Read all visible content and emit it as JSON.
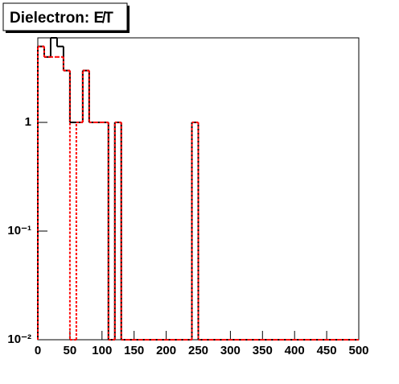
{
  "chart_data": {
    "type": "histogram",
    "title": "Dielectron: E̸T",
    "bins": [
      0,
      10,
      20,
      30,
      40,
      50,
      60,
      70,
      80,
      90,
      100,
      110,
      120,
      130,
      140,
      150,
      160,
      170,
      180,
      190,
      200,
      210,
      220,
      230,
      240,
      250,
      260,
      270,
      280,
      290,
      300,
      310,
      320,
      330,
      340,
      350,
      360,
      370,
      380,
      390,
      400,
      410,
      420,
      430,
      440,
      450,
      460,
      470,
      480,
      490,
      500
    ],
    "series": [
      {
        "color": "#000000",
        "style": "solid",
        "values": [
          5,
          4,
          6,
          5,
          3,
          1,
          1,
          3,
          1,
          1,
          1,
          0,
          1,
          0,
          0,
          0,
          0,
          0,
          0,
          0,
          0,
          0,
          0,
          0,
          1,
          0,
          0,
          0,
          0,
          0,
          0,
          0,
          0,
          0,
          0,
          0,
          0,
          0,
          0,
          0,
          0,
          0,
          0,
          0,
          0,
          0,
          0,
          0,
          0,
          0
        ]
      },
      {
        "color": "#ff0000",
        "style": "dashed",
        "values": [
          5,
          4,
          4,
          4,
          3,
          0,
          1,
          3,
          1,
          1,
          1,
          0,
          1,
          0,
          0,
          0,
          0,
          0,
          0,
          0,
          0,
          0,
          0,
          0,
          1,
          0,
          0,
          0,
          0,
          0,
          0,
          0,
          0,
          0,
          0,
          0,
          0,
          0,
          0,
          0,
          0,
          0,
          0,
          0,
          0,
          0,
          0,
          0,
          0,
          0
        ]
      }
    ],
    "xlim": [
      0,
      500
    ],
    "xticks": [
      0,
      50,
      100,
      150,
      200,
      250,
      300,
      350,
      400,
      450,
      500
    ],
    "ylim": [
      0.01,
      6
    ],
    "log_y": true,
    "yticks": [
      {
        "value": 0.01,
        "label": "10⁻²"
      },
      {
        "value": 0.1,
        "label": "10⁻¹"
      },
      1
    ]
  }
}
